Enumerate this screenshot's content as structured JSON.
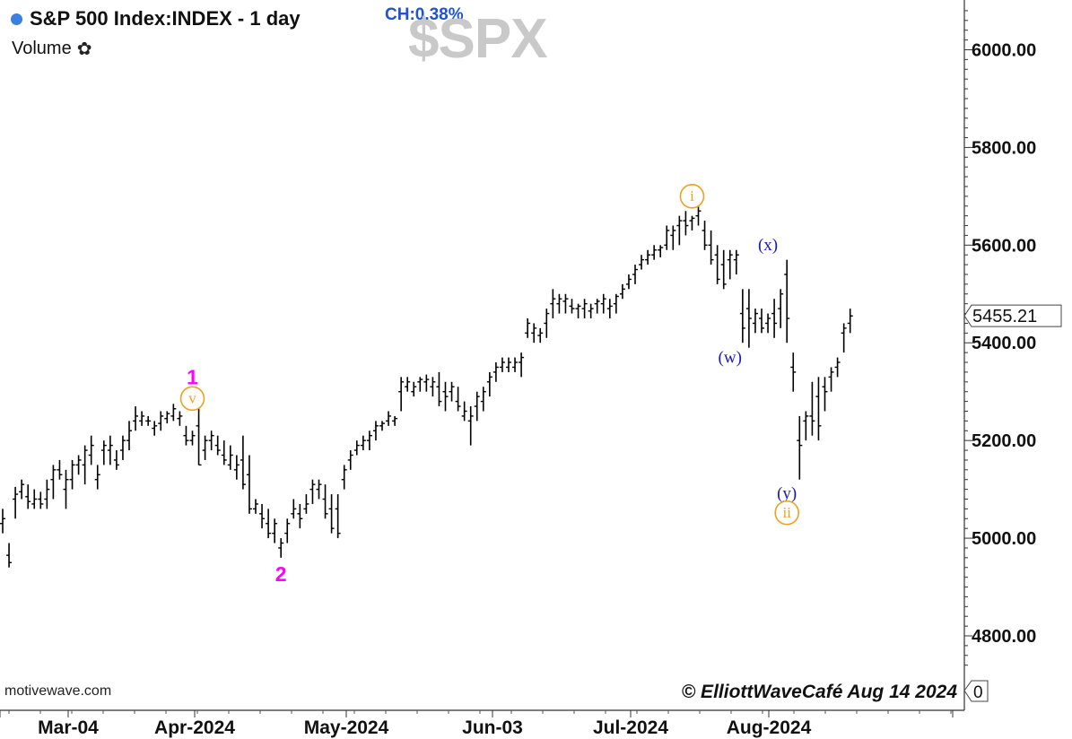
{
  "header": {
    "title": "S&P 500 Index:INDEX - 1 day",
    "change": "CH:0.38%",
    "watermark": "$SPX",
    "volume_label": "Volume",
    "status_color": "#3b7fdf"
  },
  "footer": {
    "site": "motivewave.com",
    "copyright": "© ElliottWaveCafé Aug 14 2024"
  },
  "colors": {
    "bars": "#000000",
    "magenta": "#ff00ff",
    "orange": "#f0a020",
    "blue": "#1a1ab0",
    "watermark": "#c9c9c9"
  },
  "chart_data": {
    "type": "ohlc",
    "x_labels": [
      "Mar-04",
      "Apr-2024",
      "May-2024",
      "Jun-03",
      "Jul-2024",
      "Aug-2024"
    ],
    "y_ticks": [
      {
        "value": 4800,
        "label": "4800.00"
      },
      {
        "value": 5000,
        "label": "5000.00"
      },
      {
        "value": 5200,
        "label": "5200.00"
      },
      {
        "value": 5400,
        "label": "5400.00"
      },
      {
        "value": 5600,
        "label": "5600.00"
      },
      {
        "value": 5800,
        "label": "5800.00"
      },
      {
        "value": 6000,
        "label": "6000.00"
      }
    ],
    "y_range": [
      4720,
      6080
    ],
    "last_price": {
      "value": 5455.21,
      "label": "5455.21"
    },
    "volume_value": "0",
    "grid": false,
    "bars": [
      [
        5060,
        5030,
        5010,
        5040
      ],
      [
        4990,
        4965,
        4940,
        4950
      ],
      [
        5105,
        5080,
        5040,
        5090
      ],
      [
        5120,
        5095,
        5080,
        5110
      ],
      [
        5110,
        5085,
        5060,
        5075
      ],
      [
        5100,
        5070,
        5060,
        5080
      ],
      [
        5095,
        5080,
        5060,
        5070
      ],
      [
        5120,
        5080,
        5060,
        5100
      ],
      [
        5150,
        5120,
        5080,
        5140
      ],
      [
        5160,
        5140,
        5120,
        5130
      ],
      [
        5140,
        5100,
        5060,
        5120
      ],
      [
        5160,
        5120,
        5100,
        5150
      ],
      [
        5170,
        5150,
        5130,
        5160
      ],
      [
        5190,
        5150,
        5110,
        5180
      ],
      [
        5210,
        5170,
        5150,
        5190
      ],
      [
        5150,
        5120,
        5100,
        5130
      ],
      [
        5200,
        5180,
        5150,
        5190
      ],
      [
        5210,
        5180,
        5150,
        5190
      ],
      [
        5180,
        5160,
        5140,
        5150
      ],
      [
        5210,
        5180,
        5160,
        5200
      ],
      [
        5240,
        5200,
        5180,
        5220
      ],
      [
        5270,
        5240,
        5220,
        5250
      ],
      [
        5260,
        5240,
        5230,
        5250
      ],
      [
        5250,
        5240,
        5230,
        5240
      ],
      [
        5240,
        5225,
        5210,
        5230
      ],
      [
        5260,
        5235,
        5220,
        5250
      ],
      [
        5260,
        5245,
        5235,
        5255
      ],
      [
        5275,
        5250,
        5240,
        5265
      ],
      [
        5260,
        5245,
        5230,
        5250
      ],
      [
        5230,
        5210,
        5190,
        5200
      ],
      [
        5220,
        5200,
        5190,
        5210
      ],
      [
        5270,
        5230,
        5150,
        5150
      ],
      [
        5210,
        5180,
        5160,
        5200
      ],
      [
        5220,
        5200,
        5180,
        5210
      ],
      [
        5210,
        5190,
        5170,
        5180
      ],
      [
        5200,
        5170,
        5150,
        5160
      ],
      [
        5190,
        5150,
        5140,
        5170
      ],
      [
        5170,
        5140,
        5120,
        5150
      ],
      [
        5210,
        5160,
        5100,
        5110
      ],
      [
        5170,
        5130,
        5050,
        5060
      ],
      [
        5080,
        5060,
        5050,
        5070
      ],
      [
        5070,
        5050,
        5020,
        5040
      ],
      [
        5060,
        5030,
        5000,
        5010
      ],
      [
        5040,
        5010,
        4990,
        5030
      ],
      [
        5000,
        4980,
        4960,
        4990
      ],
      [
        5040,
        5010,
        4990,
        5030
      ],
      [
        5080,
        5050,
        5040,
        5060
      ],
      [
        5070,
        5050,
        5020,
        5040
      ],
      [
        5090,
        5060,
        5050,
        5070
      ],
      [
        5120,
        5100,
        5070,
        5110
      ],
      [
        5120,
        5100,
        5080,
        5110
      ],
      [
        5110,
        5080,
        5040,
        5050
      ],
      [
        5090,
        5060,
        5010,
        5020
      ],
      [
        5090,
        5060,
        5000,
        5010
      ],
      [
        5150,
        5120,
        5100,
        5140
      ],
      [
        5180,
        5160,
        5140,
        5170
      ],
      [
        5200,
        5180,
        5170,
        5190
      ],
      [
        5210,
        5190,
        5180,
        5200
      ],
      [
        5220,
        5200,
        5180,
        5210
      ],
      [
        5240,
        5220,
        5200,
        5230
      ],
      [
        5240,
        5230,
        5220,
        5235
      ],
      [
        5260,
        5240,
        5230,
        5250
      ],
      [
        5250,
        5240,
        5230,
        5245
      ],
      [
        5330,
        5300,
        5260,
        5320
      ],
      [
        5330,
        5310,
        5300,
        5320
      ],
      [
        5320,
        5300,
        5290,
        5310
      ],
      [
        5330,
        5320,
        5300,
        5325
      ],
      [
        5335,
        5320,
        5300,
        5325
      ],
      [
        5330,
        5310,
        5290,
        5320
      ],
      [
        5340,
        5310,
        5270,
        5280
      ],
      [
        5320,
        5300,
        5260,
        5290
      ],
      [
        5320,
        5300,
        5280,
        5310
      ],
      [
        5310,
        5280,
        5260,
        5270
      ],
      [
        5280,
        5250,
        5240,
        5260
      ],
      [
        5270,
        5240,
        5190,
        5250
      ],
      [
        5300,
        5270,
        5240,
        5290
      ],
      [
        5310,
        5280,
        5260,
        5300
      ],
      [
        5340,
        5320,
        5290,
        5330
      ],
      [
        5360,
        5340,
        5320,
        5350
      ],
      [
        5370,
        5350,
        5340,
        5360
      ],
      [
        5370,
        5350,
        5340,
        5360
      ],
      [
        5370,
        5350,
        5340,
        5360
      ],
      [
        5380,
        5360,
        5330,
        5370
      ],
      [
        5450,
        5420,
        5410,
        5440
      ],
      [
        5440,
        5420,
        5400,
        5430
      ],
      [
        5430,
        5415,
        5400,
        5420
      ],
      [
        5470,
        5440,
        5410,
        5460
      ],
      [
        5510,
        5480,
        5450,
        5490
      ],
      [
        5500,
        5480,
        5460,
        5490
      ],
      [
        5500,
        5485,
        5460,
        5490
      ],
      [
        5490,
        5475,
        5460,
        5470
      ],
      [
        5480,
        5470,
        5450,
        5475
      ],
      [
        5490,
        5470,
        5450,
        5480
      ],
      [
        5480,
        5465,
        5450,
        5470
      ],
      [
        5490,
        5480,
        5460,
        5485
      ],
      [
        5500,
        5480,
        5460,
        5490
      ],
      [
        5490,
        5470,
        5450,
        5475
      ],
      [
        5500,
        5480,
        5460,
        5495
      ],
      [
        5520,
        5500,
        5490,
        5510
      ],
      [
        5540,
        5520,
        5510,
        5530
      ],
      [
        5560,
        5540,
        5520,
        5550
      ],
      [
        5580,
        5560,
        5550,
        5570
      ],
      [
        5590,
        5570,
        5560,
        5580
      ],
      [
        5600,
        5580,
        5570,
        5590
      ],
      [
        5600,
        5590,
        5575,
        5595
      ],
      [
        5640,
        5600,
        5590,
        5630
      ],
      [
        5640,
        5620,
        5590,
        5630
      ],
      [
        5660,
        5640,
        5600,
        5650
      ],
      [
        5670,
        5650,
        5620,
        5640
      ],
      [
        5660,
        5650,
        5630,
        5655
      ],
      [
        5680,
        5660,
        5640,
        5670
      ],
      [
        5650,
        5630,
        5590,
        5600
      ],
      [
        5630,
        5600,
        5560,
        5570
      ],
      [
        5600,
        5580,
        5520,
        5530
      ],
      [
        5590,
        5560,
        5510,
        5520
      ],
      [
        5590,
        5570,
        5530,
        5580
      ],
      [
        5590,
        5570,
        5540,
        5580
      ],
      [
        5510,
        5460,
        5400,
        5430
      ],
      [
        5510,
        5470,
        5390,
        5450
      ],
      [
        5470,
        5440,
        5420,
        5460
      ],
      [
        5470,
        5450,
        5420,
        5430
      ],
      [
        5460,
        5440,
        5420,
        5450
      ],
      [
        5490,
        5460,
        5410,
        5440
      ],
      [
        5510,
        5470,
        5430,
        5500
      ],
      [
        5570,
        5540,
        5400,
        5450
      ],
      [
        5380,
        5350,
        5300,
        5340
      ],
      [
        5250,
        5200,
        5120,
        5190
      ],
      [
        5260,
        5240,
        5200,
        5250
      ],
      [
        5320,
        5250,
        5210,
        5240
      ],
      [
        5330,
        5290,
        5200,
        5230
      ],
      [
        5330,
        5310,
        5260,
        5300
      ],
      [
        5350,
        5330,
        5300,
        5340
      ],
      [
        5370,
        5350,
        5330,
        5360
      ],
      [
        5440,
        5420,
        5380,
        5430
      ],
      [
        5470,
        5440,
        5420,
        5455
      ]
    ],
    "annotations": [
      {
        "label": "1",
        "shape": "text",
        "color": "#ff00ff",
        "x": 30,
        "y": 5328
      },
      {
        "label": "v",
        "shape": "circle",
        "color": "#f0a020",
        "x": 30,
        "y": 5286
      },
      {
        "label": "2",
        "shape": "text",
        "color": "#ff00ff",
        "x": 44,
        "y": 4925
      },
      {
        "label": "i",
        "shape": "circle",
        "color": "#f0a020",
        "x": 109,
        "y": 5700
      },
      {
        "label": "(x)",
        "shape": "text",
        "color": "#1a1ab0",
        "x": 121,
        "y": 5602
      },
      {
        "label": "(w)",
        "shape": "text",
        "color": "#1a1ab0",
        "x": 115,
        "y": 5372
      },
      {
        "label": "(y)",
        "shape": "text",
        "color": "#1a1ab0",
        "x": 124,
        "y": 5094
      },
      {
        "label": "ii",
        "shape": "circle",
        "color": "#f0a020",
        "x": 124,
        "y": 5052
      }
    ]
  }
}
